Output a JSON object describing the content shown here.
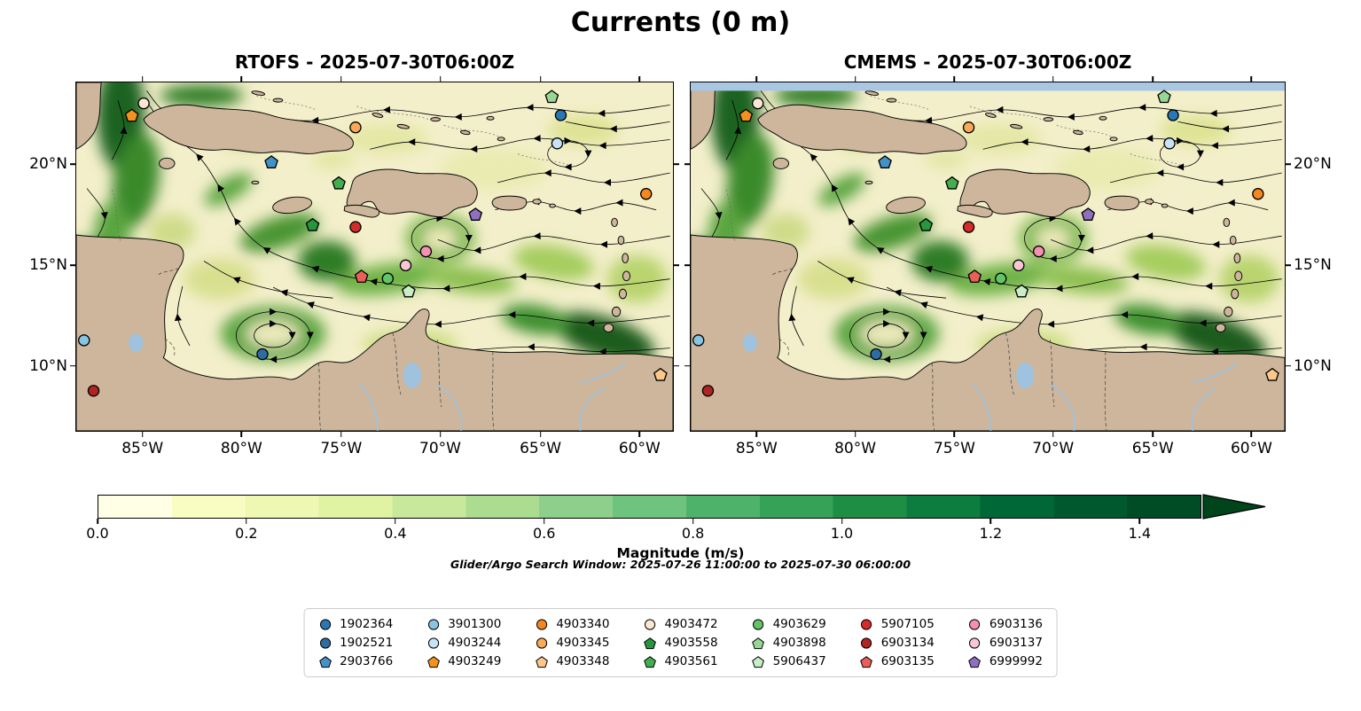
{
  "title": "Currents (0 m)",
  "panels": [
    {
      "id": "rtofs",
      "title": "RTOFS - 2025-07-30T06:00Z",
      "lat_labels": "left",
      "top_strip": false
    },
    {
      "id": "cmems",
      "title": "CMEMS - 2025-07-30T06:00Z",
      "lat_labels": "right",
      "top_strip": true
    }
  ],
  "axes": {
    "lat_ticks": [
      {
        "label": "20°N",
        "pct": 23.5
      },
      {
        "label": "15°N",
        "pct": 52.4
      },
      {
        "label": "10°N",
        "pct": 81.3
      }
    ],
    "lon_ticks": [
      {
        "label": "85°W",
        "pct": 11.1
      },
      {
        "label": "80°W",
        "pct": 27.7
      },
      {
        "label": "75°W",
        "pct": 44.4
      },
      {
        "label": "70°W",
        "pct": 61.0
      },
      {
        "label": "65°W",
        "pct": 77.8
      },
      {
        "label": "60°W",
        "pct": 94.4
      }
    ]
  },
  "colorbar": {
    "label": "Magnitude (m/s)",
    "tick_labels": [
      "0.0",
      "0.2",
      "0.4",
      "0.6",
      "0.8",
      "1.0",
      "1.2",
      "1.4"
    ],
    "tick_values": [
      0,
      0.2,
      0.4,
      0.6,
      0.8,
      1.0,
      1.2,
      1.4
    ],
    "body_vmax": 1.483,
    "band_colors": [
      "#ffffe5",
      "#f9fdc2",
      "#eef8b2",
      "#dff3a2",
      "#c8e99c",
      "#abdc8f",
      "#8ed08b",
      "#6ec47e",
      "#4eb26a",
      "#35a258",
      "#1e8e45",
      "#0c7c3f",
      "#006837",
      "#00592e",
      "#004c25"
    ],
    "arrow_color": "#00441b",
    "extend": "max"
  },
  "search_window_note": "Glider/Argo Search Window: 2025-07-26 11:00:00 to 2025-07-30 06:00:00",
  "legend": {
    "entries": [
      {
        "id": "1902364",
        "marker": "circle",
        "color": "#2878b5"
      },
      {
        "id": "1902521",
        "marker": "circle",
        "color": "#2e6da4"
      },
      {
        "id": "2903766",
        "marker": "pentagon",
        "color": "#4292c6"
      },
      {
        "id": "3901300",
        "marker": "circle",
        "color": "#89c4e1"
      },
      {
        "id": "4903244",
        "marker": "circle",
        "color": "#c8e3f5"
      },
      {
        "id": "4903249",
        "marker": "pentagon",
        "color": "#f5921e"
      },
      {
        "id": "4903340",
        "marker": "circle",
        "color": "#f5871f"
      },
      {
        "id": "4903345",
        "marker": "circle",
        "color": "#f9a958"
      },
      {
        "id": "4903348",
        "marker": "pentagon",
        "color": "#fbc88a"
      },
      {
        "id": "4903472",
        "marker": "circle",
        "color": "#fce8d2"
      },
      {
        "id": "4903558",
        "marker": "pentagon",
        "color": "#27963c"
      },
      {
        "id": "4903561",
        "marker": "pentagon",
        "color": "#44ad4e"
      },
      {
        "id": "4903629",
        "marker": "circle",
        "color": "#63c465"
      },
      {
        "id": "4903898",
        "marker": "pentagon",
        "color": "#97d694"
      },
      {
        "id": "5906437",
        "marker": "pentagon",
        "color": "#c9edc4"
      },
      {
        "id": "5907105",
        "marker": "circle",
        "color": "#d62b2b"
      },
      {
        "id": "6903134",
        "marker": "circle",
        "color": "#b02424"
      },
      {
        "id": "6903135",
        "marker": "pentagon",
        "color": "#e9605a"
      },
      {
        "id": "6903136",
        "marker": "circle",
        "color": "#f490b2"
      },
      {
        "id": "6903137",
        "marker": "circle",
        "color": "#f9c6d4"
      },
      {
        "id": "6999992",
        "marker": "pentagon",
        "color": "#8f6fc0"
      }
    ]
  },
  "chart_data": {
    "type": "map-streamplot",
    "title": "Currents (0 m)",
    "depth_m": 0,
    "panels": [
      "RTOFS - 2025-07-30T06:00Z",
      "CMEMS - 2025-07-30T06:00Z"
    ],
    "colorbar_label": "Magnitude (m/s)",
    "colorbar_ticks": [
      0,
      0.2,
      0.4,
      0.6,
      0.8,
      1.0,
      1.2,
      1.4
    ],
    "colorbar_range": [
      0.0,
      1.5
    ],
    "lon_ticks_deg_west": [
      85,
      80,
      75,
      70,
      65,
      60
    ],
    "lat_ticks_deg_north": [
      20,
      15,
      10
    ],
    "approx_extent": {
      "lon_west_deg": [
        88.3,
        58.3
      ],
      "lat_north_deg": [
        24.1,
        7.1
      ]
    },
    "platforms": [
      {
        "id": "4903249",
        "x_pct": 9.3,
        "y_pct": 9.6
      },
      {
        "id": "4903472",
        "x_pct": 11.3,
        "y_pct": 6.0
      },
      {
        "id": "4903898",
        "x_pct": 79.7,
        "y_pct": 4.2
      },
      {
        "id": "1902364",
        "x_pct": 81.2,
        "y_pct": 9.4
      },
      {
        "id": "4903345",
        "x_pct": 46.8,
        "y_pct": 12.9
      },
      {
        "id": "4903244",
        "x_pct": 80.6,
        "y_pct": 17.5
      },
      {
        "id": "2903766",
        "x_pct": 32.7,
        "y_pct": 23.0
      },
      {
        "id": "4903561",
        "x_pct": 44.0,
        "y_pct": 29.0
      },
      {
        "id": "4903340",
        "x_pct": 95.5,
        "y_pct": 32.0
      },
      {
        "id": "4903558",
        "x_pct": 39.6,
        "y_pct": 41.0
      },
      {
        "id": "5907105",
        "x_pct": 46.8,
        "y_pct": 41.5
      },
      {
        "id": "6999992",
        "x_pct": 66.9,
        "y_pct": 38.0
      },
      {
        "id": "6903136",
        "x_pct": 58.6,
        "y_pct": 48.5
      },
      {
        "id": "6903137",
        "x_pct": 55.2,
        "y_pct": 52.5
      },
      {
        "id": "6903135",
        "x_pct": 47.8,
        "y_pct": 55.8
      },
      {
        "id": "4903629",
        "x_pct": 52.2,
        "y_pct": 56.3
      },
      {
        "id": "5906437",
        "x_pct": 55.7,
        "y_pct": 60.0
      },
      {
        "id": "3901300",
        "x_pct": 1.3,
        "y_pct": 74.0
      },
      {
        "id": "1902521",
        "x_pct": 31.2,
        "y_pct": 78.0
      },
      {
        "id": "6903134",
        "x_pct": 2.9,
        "y_pct": 88.5
      },
      {
        "id": "4903348",
        "x_pct": 97.9,
        "y_pct": 84.0
      }
    ]
  }
}
